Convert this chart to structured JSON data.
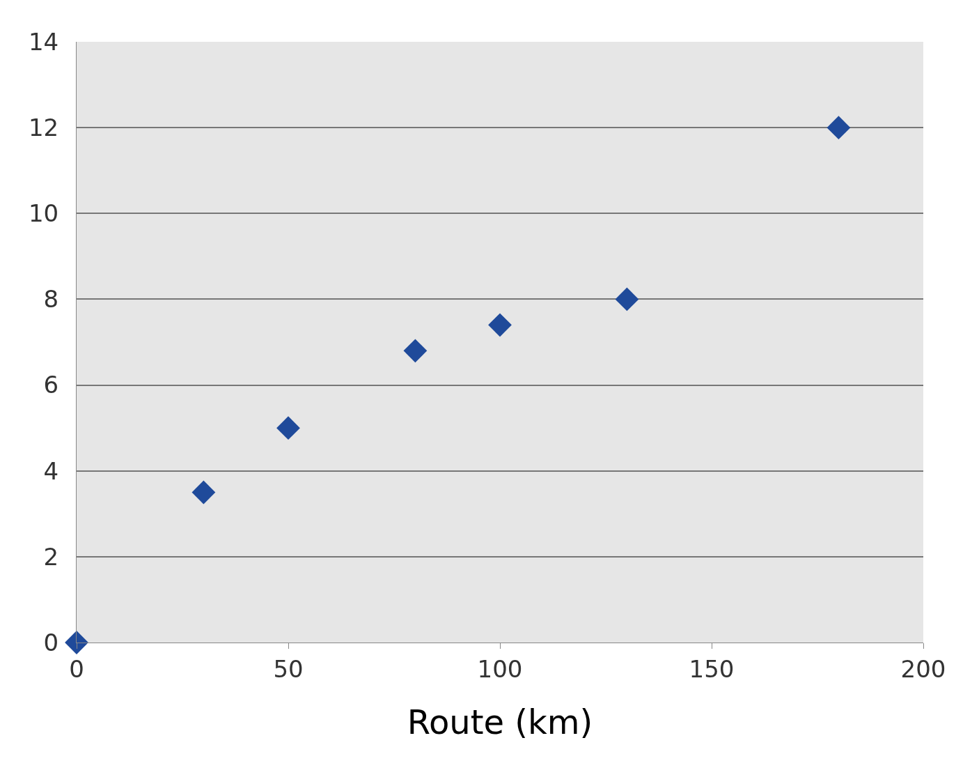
{
  "chart_data": {
    "type": "scatter",
    "xlabel": "Route (km)",
    "x": [
      0,
      30,
      50,
      80,
      100,
      130,
      180
    ],
    "values": [
      0,
      3.5,
      5,
      6.8,
      7.4,
      8,
      12
    ],
    "color": "#1f4a9a",
    "marker": "diamond",
    "xlim": [
      0,
      200
    ],
    "xticks": [
      0,
      50,
      100,
      150,
      200
    ],
    "ylim": [
      0,
      14
    ],
    "yticks": [
      0,
      2,
      4,
      6,
      8,
      10,
      12,
      14
    ],
    "grid": "y"
  }
}
